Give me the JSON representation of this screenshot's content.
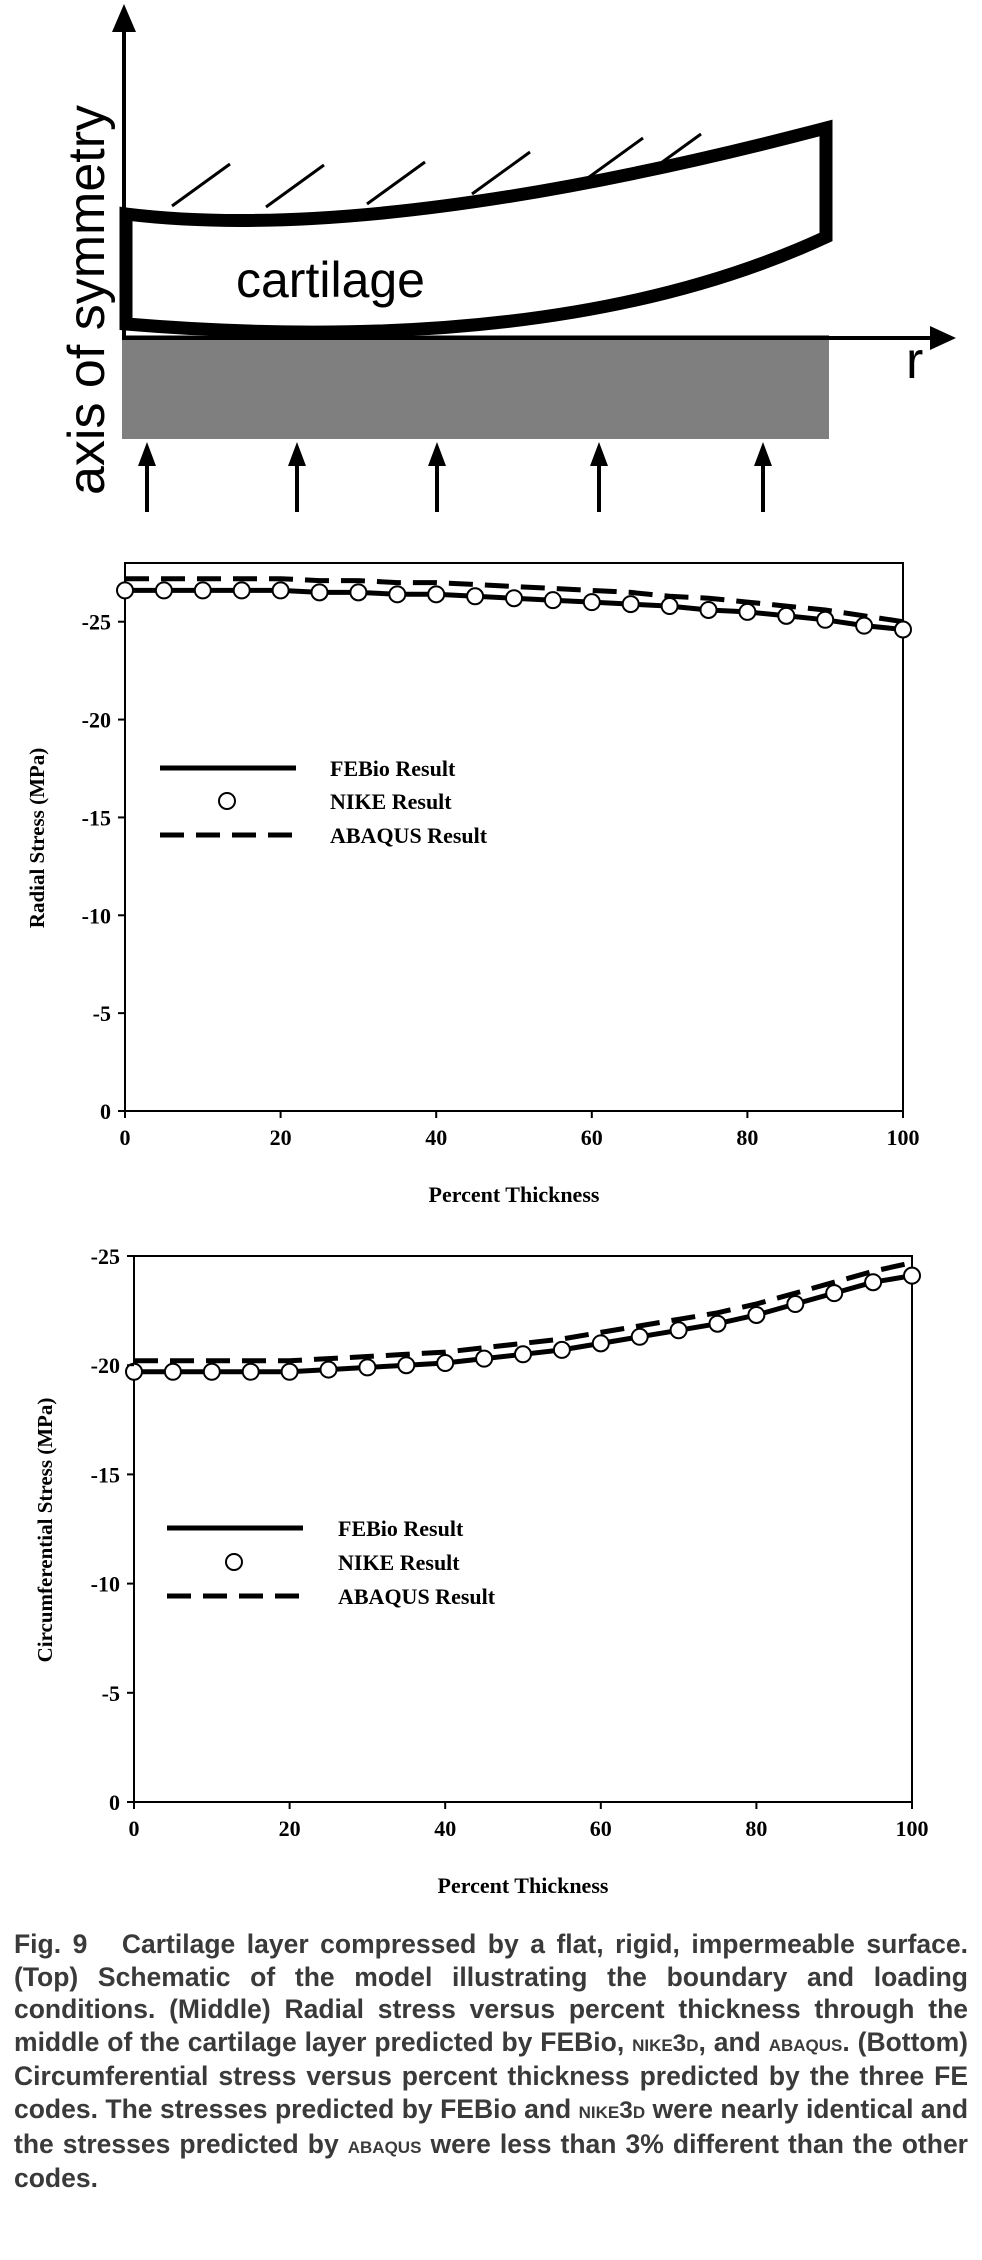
{
  "schematic": {
    "axis_label": "axis of symmetry",
    "material_label": "cartilage",
    "radial_axis_label": "r"
  },
  "legend_entries": [
    "FEBio Result",
    "NIKE Result",
    "ABAQUS Result"
  ],
  "chart_data": [
    {
      "type": "line",
      "title": "",
      "xlabel": "Percent Thickness",
      "ylabel": "Radial Stress (MPa)",
      "xlim": [
        0,
        100
      ],
      "ylim": [
        0,
        -28
      ],
      "x_ticks": [
        0,
        20,
        40,
        60,
        80,
        100
      ],
      "y_ticks": [
        0,
        -5,
        -10,
        -15,
        -20,
        -25
      ],
      "legend": "left-middle",
      "grid": false,
      "series": [
        {
          "name": "FEBio Result",
          "style": "solid-line",
          "x": [
            0,
            5,
            10,
            15,
            20,
            25,
            30,
            35,
            40,
            45,
            50,
            55,
            60,
            65,
            70,
            75,
            80,
            85,
            90,
            95,
            100
          ],
          "y": [
            -26.6,
            -26.6,
            -26.6,
            -26.6,
            -26.6,
            -26.5,
            -26.5,
            -26.4,
            -26.4,
            -26.3,
            -26.2,
            -26.1,
            -26.0,
            -25.9,
            -25.8,
            -25.6,
            -25.5,
            -25.3,
            -25.1,
            -24.8,
            -24.6
          ]
        },
        {
          "name": "NIKE Result",
          "style": "open-circle",
          "x": [
            0,
            5,
            10,
            15,
            20,
            25,
            30,
            35,
            40,
            45,
            50,
            55,
            60,
            65,
            70,
            75,
            80,
            85,
            90,
            95,
            100
          ],
          "y": [
            -26.6,
            -26.6,
            -26.6,
            -26.6,
            -26.6,
            -26.5,
            -26.5,
            -26.4,
            -26.4,
            -26.3,
            -26.2,
            -26.1,
            -26.0,
            -25.9,
            -25.8,
            -25.6,
            -25.5,
            -25.3,
            -25.1,
            -24.8,
            -24.6
          ]
        },
        {
          "name": "ABAQUS Result",
          "style": "dashed-line",
          "x": [
            0,
            5,
            10,
            15,
            20,
            25,
            30,
            35,
            40,
            45,
            50,
            55,
            60,
            65,
            70,
            75,
            80,
            85,
            90,
            95,
            100
          ],
          "y": [
            -27.2,
            -27.2,
            -27.2,
            -27.2,
            -27.2,
            -27.1,
            -27.1,
            -27.0,
            -27.0,
            -26.9,
            -26.8,
            -26.7,
            -26.6,
            -26.5,
            -26.3,
            -26.2,
            -26.0,
            -25.8,
            -25.6,
            -25.3,
            -25.0
          ]
        }
      ]
    },
    {
      "type": "line",
      "title": "",
      "xlabel": "Percent Thickness",
      "ylabel": "Circumferential Stress (MPa)",
      "xlim": [
        0,
        100
      ],
      "ylim": [
        0,
        -25
      ],
      "x_ticks": [
        0,
        20,
        40,
        60,
        80,
        100
      ],
      "y_ticks": [
        0,
        -5,
        -10,
        -15,
        -20,
        -25
      ],
      "legend": "left-middle",
      "grid": false,
      "series": [
        {
          "name": "FEBio Result",
          "style": "solid-line",
          "x": [
            0,
            5,
            10,
            15,
            20,
            25,
            30,
            35,
            40,
            45,
            50,
            55,
            60,
            65,
            70,
            75,
            80,
            85,
            90,
            95,
            100
          ],
          "y": [
            -19.7,
            -19.7,
            -19.7,
            -19.7,
            -19.7,
            -19.8,
            -19.9,
            -20.0,
            -20.1,
            -20.3,
            -20.5,
            -20.7,
            -21.0,
            -21.3,
            -21.6,
            -21.9,
            -22.3,
            -22.8,
            -23.3,
            -23.8,
            -24.1
          ]
        },
        {
          "name": "NIKE Result",
          "style": "open-circle",
          "x": [
            0,
            5,
            10,
            15,
            20,
            25,
            30,
            35,
            40,
            45,
            50,
            55,
            60,
            65,
            70,
            75,
            80,
            85,
            90,
            95,
            100
          ],
          "y": [
            -19.7,
            -19.7,
            -19.7,
            -19.7,
            -19.7,
            -19.8,
            -19.9,
            -20.0,
            -20.1,
            -20.3,
            -20.5,
            -20.7,
            -21.0,
            -21.3,
            -21.6,
            -21.9,
            -22.3,
            -22.8,
            -23.3,
            -23.8,
            -24.1
          ]
        },
        {
          "name": "ABAQUS Result",
          "style": "dashed-line",
          "x": [
            0,
            5,
            10,
            15,
            20,
            25,
            30,
            35,
            40,
            45,
            50,
            55,
            60,
            65,
            70,
            75,
            80,
            85,
            90,
            95,
            100
          ],
          "y": [
            -20.2,
            -20.2,
            -20.2,
            -20.2,
            -20.2,
            -20.3,
            -20.4,
            -20.5,
            -20.6,
            -20.8,
            -21.0,
            -21.2,
            -21.5,
            -21.8,
            -22.1,
            -22.4,
            -22.8,
            -23.3,
            -23.8,
            -24.3,
            -24.7
          ]
        }
      ]
    }
  ],
  "caption": {
    "label": "Fig. 9",
    "p1": "Cartilage layer compressed by a flat, rigid, impermeable surface. (Top) Schematic of the model illustrating the boundary and loading conditions. (Middle) Radial stress versus percent thickness through the middle of the cartilage layer predicted by FEBio, ",
    "nike1": "nike3d",
    "p2": ", and ",
    "abaqus1": "abaqus",
    "p3": ". (Bottom) Circumferential stress versus percent thickness predicted by the three FE codes. The stresses predicted by FEBio and ",
    "nike2": "nike3d",
    "p4": " were nearly identical and the stresses predicted by ",
    "abaqus2": "abaqus",
    "p5": " were less than 3% different than the other codes."
  }
}
